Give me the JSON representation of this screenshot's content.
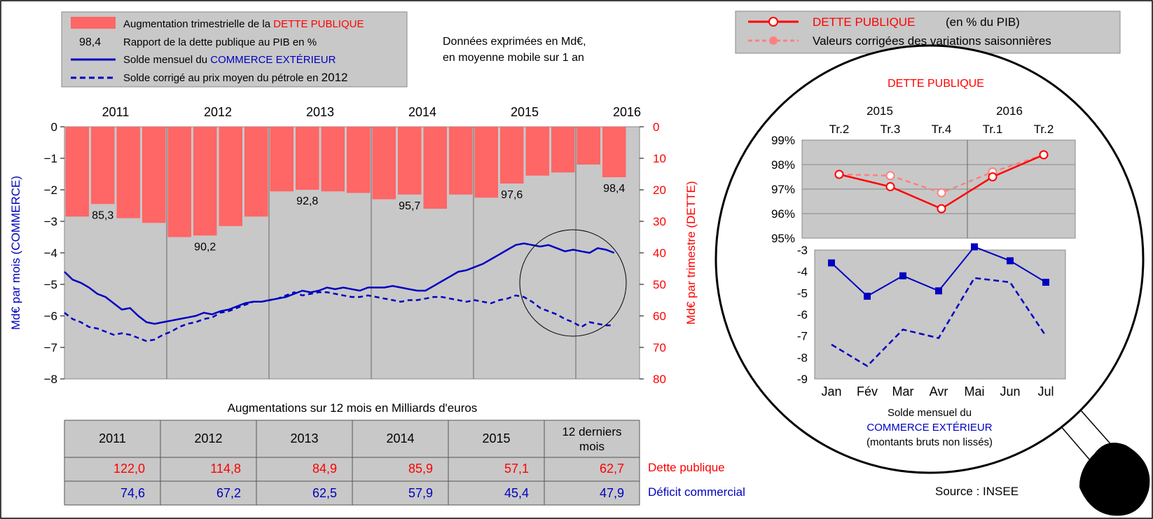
{
  "colors": {
    "debt": "#ff0000",
    "debt_bar": "#ff6666",
    "debt_cvs": "#ff8080",
    "trade": "#0000c0",
    "plot_bg": "#c8c8c8",
    "legend_bg": "#c8c8c8"
  },
  "left_legend": {
    "items": [
      {
        "text": "Augmentation trimestrielle de la ",
        "highlight": "DETTE PUBLIQUE",
        "symbol": "bar"
      },
      {
        "text": "Rapport de la dette publique au PIB en %",
        "highlight": "",
        "symbol": "98,4"
      },
      {
        "text": "Solde mensuel du ",
        "highlight": "COMMERCE EXTÉRIEUR",
        "symbol": "line"
      },
      {
        "text": "Solde corrigé au prix moyen du pétrole en ",
        "highlight": "2012",
        "symbol": "dashed"
      }
    ]
  },
  "note": {
    "line1": "Données exprimées en Md€,",
    "line2": "en moyenne mobile sur 1 an"
  },
  "right_legend": {
    "item1": {
      "text": "DETTE PUBLIQUE",
      "suffix": "(en % du PIB)"
    },
    "item2": {
      "text": "Valeurs corrigées des variations saisonnières"
    }
  },
  "source": "Source : INSEE",
  "chart_data": [
    {
      "type": "bar+line",
      "years": [
        "2011",
        "2012",
        "2013",
        "2014",
        "2015",
        "2016"
      ],
      "ylabel_left": "Md€ par mois (COMMERCE)",
      "ylabel_right": "Md€ par trimestre (DETTE)",
      "left_axis": {
        "ylim": [
          -8,
          0
        ],
        "ticks": [
          "0",
          "−1",
          "−2",
          "−3",
          "−4",
          "−5",
          "−6",
          "−7",
          "−8"
        ]
      },
      "right_axis": {
        "ylim": [
          0,
          80
        ],
        "ticks": [
          "0",
          "10",
          "20",
          "30",
          "40",
          "50",
          "60",
          "70",
          "80"
        ]
      },
      "debt_quarterly_increase": [
        28.5,
        24.5,
        29,
        30.5,
        35,
        34.5,
        31.5,
        28.5,
        20.5,
        20,
        20.5,
        21,
        23,
        21.5,
        26,
        21.5,
        22.5,
        18,
        15.5,
        14.5,
        12,
        16
      ],
      "debt_ratio_labels": [
        {
          "quarter": 2,
          "label": "85,3"
        },
        {
          "quarter": 6,
          "label": "90,2"
        },
        {
          "quarter": 10,
          "label": "92,8"
        },
        {
          "quarter": 14,
          "label": "95,7"
        },
        {
          "quarter": 18,
          "label": "97,6"
        },
        {
          "quarter": 22,
          "label": "98,4"
        }
      ],
      "trade_balance_monthly": [
        -4.6,
        -4.85,
        -4.95,
        -5.1,
        -5.3,
        -5.4,
        -5.6,
        -5.8,
        -5.75,
        -6,
        -6.2,
        -6.25,
        -6.2,
        -6.15,
        -6.1,
        -6.05,
        -6,
        -5.9,
        -5.95,
        -5.85,
        -5.8,
        -5.7,
        -5.6,
        -5.55,
        -5.55,
        -5.5,
        -5.45,
        -5.4,
        -5.3,
        -5.2,
        -5.25,
        -5.2,
        -5.1,
        -5.15,
        -5.1,
        -5.15,
        -5.2,
        -5.1,
        -5.1,
        -5.1,
        -5.05,
        -5.1,
        -5.15,
        -5.2,
        -5.2,
        -5.05,
        -4.9,
        -4.75,
        -4.6,
        -4.55,
        -4.45,
        -4.35,
        -4.2,
        -4.05,
        -3.9,
        -3.75,
        -3.7,
        -3.75,
        -3.8,
        -3.75,
        -3.85,
        -3.95,
        -3.9,
        -3.95,
        -4,
        -3.85,
        -3.9,
        -4
      ],
      "trade_balance_oil_corrected": [
        -5.9,
        -6.1,
        -6.2,
        -6.35,
        -6.4,
        -6.5,
        -6.6,
        -6.55,
        -6.6,
        -6.7,
        -6.8,
        -6.75,
        -6.6,
        -6.5,
        -6.35,
        -6.25,
        -6.2,
        -6.1,
        -6.05,
        -5.9,
        -5.85,
        -5.75,
        -5.65,
        -5.55,
        -5.55,
        -5.5,
        -5.45,
        -5.35,
        -5.25,
        -5.35,
        -5.3,
        -5.25,
        -5.25,
        -5.3,
        -5.35,
        -5.4,
        -5.4,
        -5.35,
        -5.4,
        -5.45,
        -5.5,
        -5.55,
        -5.5,
        -5.5,
        -5.45,
        -5.4,
        -5.4,
        -5.45,
        -5.5,
        -5.55,
        -5.5,
        -5.55,
        -5.6,
        -5.5,
        -5.45,
        -5.35,
        -5.4,
        -5.55,
        -5.75,
        -5.85,
        -5.95,
        -6.1,
        -6.2,
        -6.35,
        -6.2,
        -6.25,
        -6.3,
        -6.3
      ]
    },
    {
      "type": "line",
      "title": "DETTE PUBLIQUE",
      "year_labels": [
        "2015",
        "2016"
      ],
      "categories": [
        "Tr.2",
        "Tr.3",
        "Tr.4",
        "Tr.1",
        "Tr.2"
      ],
      "ylim": [
        95,
        99
      ],
      "yticks": [
        "99%",
        "98%",
        "97%",
        "96%",
        "95%"
      ],
      "series": [
        {
          "values": [
            97.6,
            97.1,
            96.2,
            97.5,
            98.4
          ]
        },
        {
          "values": [
            97.6,
            97.55,
            96.85,
            97.7,
            98.4
          ]
        }
      ]
    },
    {
      "type": "line",
      "categories": [
        "Jan",
        "Fév",
        "Mar",
        "Avr",
        "Mai",
        "Jun",
        "Jul"
      ],
      "ylim": [
        -9,
        -3
      ],
      "yticks": [
        "-3",
        "-4",
        "-5",
        "-6",
        "-7",
        "-8",
        "-9"
      ],
      "caption": {
        "line1": "Solde mensuel du",
        "line2": "COMMERCE EXTÉRIEUR",
        "line3": "(montants bruts non lissés)"
      },
      "series": [
        {
          "values": [
            -3.6,
            -5.15,
            -4.2,
            -4.9,
            -2.85,
            -3.5,
            -4.5
          ]
        },
        {
          "values": [
            -7.4,
            -8.4,
            -6.7,
            -7.1,
            -4.3,
            -4.5,
            -7.0
          ]
        }
      ]
    }
  ],
  "table": {
    "title": "Augmentations sur 12 mois en Milliards d'euros",
    "headers": [
      "2011",
      "2012",
      "2013",
      "2014",
      "2015",
      "12 derniers",
      "mois"
    ],
    "debt_row": {
      "label": "Dette publique",
      "values": [
        "122,0",
        "114,8",
        "84,9",
        "85,9",
        "57,1",
        "62,7"
      ]
    },
    "trade_row": {
      "label": "Déficit commercial",
      "values": [
        "74,6",
        "67,2",
        "62,5",
        "57,9",
        "45,4",
        "47,9"
      ]
    }
  }
}
